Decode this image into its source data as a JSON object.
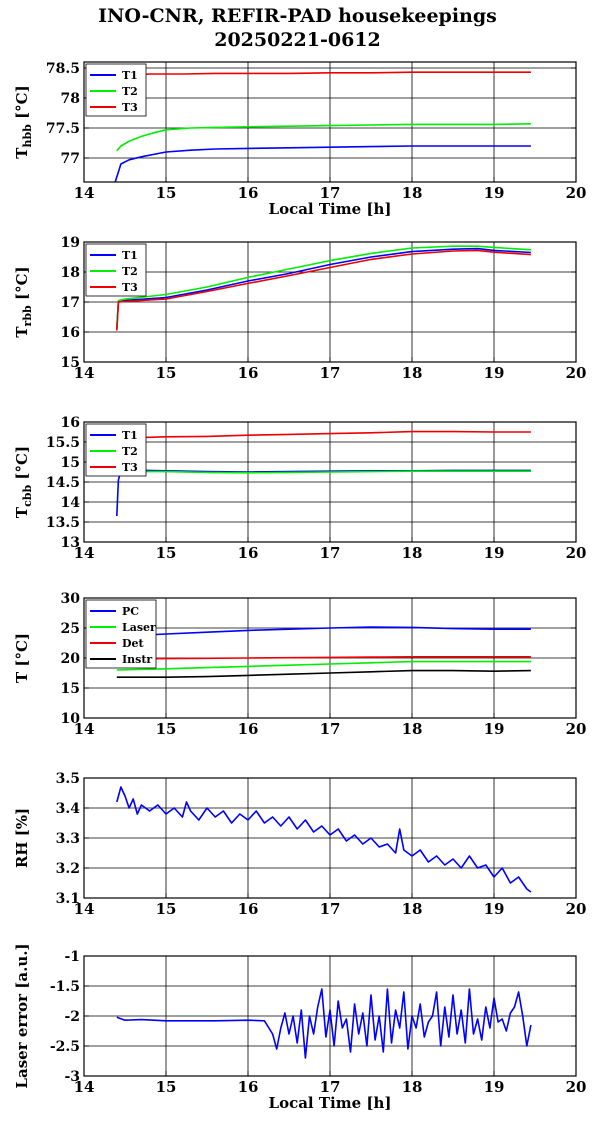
{
  "title_line1": "INO-CNR, REFIR-PAD housekeepings",
  "title_line2": "20250221-0612",
  "colors": {
    "blue": "#0000ff",
    "green": "#00ee00",
    "red": "#ee0000",
    "black": "#000000"
  },
  "chart_data": [
    {
      "type": "line",
      "ylabel_main": "T",
      "ylabel_sub": "hbb",
      "ylabel_unit": " [°C]",
      "xlabel": "Local Time [h]",
      "xlim": [
        14,
        20
      ],
      "ylim": [
        76.6,
        78.6
      ],
      "xticks": [
        14,
        15,
        16,
        17,
        18,
        19,
        20
      ],
      "yticks": [
        77,
        77.5,
        78,
        78.5
      ],
      "ytick_labels": [
        "77",
        "77.5",
        "78",
        "78.5"
      ],
      "grid": true,
      "legend": "top-left",
      "series": [
        {
          "name": "T1",
          "color": "#0000ff",
          "x": [
            14.38,
            14.45,
            14.55,
            14.7,
            14.85,
            15.0,
            15.3,
            15.6,
            16.0,
            16.5,
            17.0,
            17.5,
            18.0,
            18.5,
            19.0,
            19.45
          ],
          "y": [
            76.6,
            76.9,
            76.97,
            77.02,
            77.06,
            77.1,
            77.13,
            77.15,
            77.16,
            77.17,
            77.18,
            77.19,
            77.2,
            77.2,
            77.2,
            77.2
          ]
        },
        {
          "name": "T2",
          "color": "#00ee00",
          "x": [
            14.4,
            14.45,
            14.55,
            14.7,
            14.85,
            15.0,
            15.3,
            15.6,
            16.0,
            16.5,
            17.0,
            17.5,
            18.0,
            18.5,
            19.0,
            19.45
          ],
          "y": [
            77.12,
            77.2,
            77.28,
            77.36,
            77.42,
            77.47,
            77.5,
            77.51,
            77.52,
            77.53,
            77.54,
            77.55,
            77.56,
            77.56,
            77.56,
            77.57
          ]
        },
        {
          "name": "T3",
          "color": "#ee0000",
          "x": [
            14.45,
            14.55,
            14.8,
            15.2,
            15.6,
            16.0,
            16.5,
            17.0,
            17.5,
            18.0,
            18.5,
            19.0,
            19.45
          ],
          "y": [
            78.3,
            78.37,
            78.4,
            78.4,
            78.41,
            78.41,
            78.41,
            78.42,
            78.42,
            78.43,
            78.43,
            78.43,
            78.43
          ]
        }
      ]
    },
    {
      "type": "line",
      "ylabel_main": "T",
      "ylabel_sub": "rbb",
      "ylabel_unit": " [°C]",
      "xlim": [
        14,
        20
      ],
      "ylim": [
        15,
        19
      ],
      "xticks": [
        14,
        15,
        16,
        17,
        18,
        19,
        20
      ],
      "yticks": [
        15,
        16,
        17,
        18,
        19
      ],
      "ytick_labels": [
        "15",
        "16",
        "17",
        "18",
        "19"
      ],
      "grid": true,
      "legend": "top-left",
      "series": [
        {
          "name": "T1",
          "color": "#0000ff",
          "x": [
            14.4,
            14.42,
            14.5,
            15.0,
            15.5,
            16.0,
            16.5,
            17.0,
            17.5,
            18.0,
            18.5,
            18.8,
            19.0,
            19.45
          ],
          "y": [
            16.1,
            17.0,
            17.05,
            17.15,
            17.4,
            17.7,
            17.95,
            18.25,
            18.5,
            18.68,
            18.76,
            18.78,
            18.72,
            18.65
          ]
        },
        {
          "name": "T2",
          "color": "#00ee00",
          "x": [
            14.4,
            14.42,
            14.5,
            15.0,
            15.5,
            16.0,
            16.5,
            17.0,
            17.5,
            18.0,
            18.5,
            18.8,
            19.0,
            19.45
          ],
          "y": [
            16.15,
            17.05,
            17.1,
            17.25,
            17.5,
            17.82,
            18.1,
            18.38,
            18.62,
            18.8,
            18.86,
            18.86,
            18.82,
            18.74
          ]
        },
        {
          "name": "T3",
          "color": "#ee0000",
          "x": [
            14.4,
            14.42,
            14.5,
            15.0,
            15.5,
            16.0,
            16.5,
            17.0,
            17.5,
            18.0,
            18.5,
            18.8,
            19.0,
            19.45
          ],
          "y": [
            16.05,
            17.0,
            17.02,
            17.1,
            17.35,
            17.62,
            17.88,
            18.15,
            18.42,
            18.6,
            18.7,
            18.72,
            18.66,
            18.58
          ]
        }
      ]
    },
    {
      "type": "line",
      "ylabel_main": "T",
      "ylabel_sub": "cbb",
      "ylabel_unit": " [°C]",
      "xlim": [
        14,
        20
      ],
      "ylim": [
        13,
        16
      ],
      "xticks": [
        14,
        15,
        16,
        17,
        18,
        19,
        20
      ],
      "yticks": [
        13,
        13.5,
        14,
        14.5,
        15,
        15.5,
        16
      ],
      "ytick_labels": [
        "13",
        "13.5",
        "14",
        "14.5",
        "15",
        "15.5",
        "16"
      ],
      "grid": true,
      "legend": "top-left",
      "series": [
        {
          "name": "T1",
          "color": "#0000ff",
          "x": [
            14.4,
            14.42,
            14.45,
            14.5,
            15.0,
            15.5,
            16.0,
            16.5,
            17.0,
            17.5,
            18.0,
            18.5,
            19.0,
            19.45
          ],
          "y": [
            13.65,
            14.55,
            14.78,
            14.8,
            14.78,
            14.76,
            14.75,
            14.76,
            14.77,
            14.78,
            14.78,
            14.79,
            14.79,
            14.79
          ]
        },
        {
          "name": "T2",
          "color": "#00ee00",
          "x": [
            14.45,
            14.5,
            15.0,
            15.5,
            16.0,
            16.5,
            17.0,
            17.5,
            18.0,
            18.5,
            19.0,
            19.45
          ],
          "y": [
            14.75,
            14.76,
            14.76,
            14.74,
            14.73,
            14.74,
            14.75,
            14.76,
            14.77,
            14.77,
            14.77,
            14.77
          ]
        },
        {
          "name": "T3",
          "color": "#ee0000",
          "x": [
            14.45,
            14.5,
            15.0,
            15.5,
            16.0,
            16.5,
            17.0,
            17.5,
            18.0,
            18.5,
            19.0,
            19.45
          ],
          "y": [
            15.6,
            15.6,
            15.63,
            15.64,
            15.67,
            15.69,
            15.71,
            15.73,
            15.76,
            15.76,
            15.75,
            15.75
          ]
        }
      ]
    },
    {
      "type": "line",
      "ylabel_main": "T [°C]",
      "xlim": [
        14,
        20
      ],
      "ylim": [
        10,
        30
      ],
      "xticks": [
        14,
        15,
        16,
        17,
        18,
        19,
        20
      ],
      "yticks": [
        10,
        15,
        20,
        25,
        30
      ],
      "ytick_labels": [
        "10",
        "15",
        "20",
        "25",
        "30"
      ],
      "grid": true,
      "legend": "top-left",
      "series": [
        {
          "name": "PC",
          "color": "#0000ff",
          "x": [
            14.4,
            15.0,
            15.5,
            16.0,
            16.5,
            17.0,
            17.5,
            18.0,
            18.5,
            19.0,
            19.45
          ],
          "y": [
            23.6,
            24.0,
            24.3,
            24.6,
            24.8,
            25.0,
            25.15,
            25.1,
            24.9,
            24.8,
            24.8
          ]
        },
        {
          "name": "Laser",
          "color": "#00ee00",
          "x": [
            14.4,
            15.0,
            15.5,
            16.0,
            16.5,
            17.0,
            17.5,
            18.0,
            18.5,
            19.0,
            19.45
          ],
          "y": [
            18.0,
            18.2,
            18.4,
            18.6,
            18.8,
            19.0,
            19.2,
            19.4,
            19.4,
            19.4,
            19.4
          ]
        },
        {
          "name": "Det",
          "color": "#ee0000",
          "x": [
            14.4,
            15.0,
            15.5,
            16.0,
            16.5,
            17.0,
            17.5,
            18.0,
            18.5,
            19.0,
            19.45
          ],
          "y": [
            19.8,
            19.9,
            19.95,
            20.0,
            20.05,
            20.1,
            20.15,
            20.2,
            20.2,
            20.2,
            20.2
          ]
        },
        {
          "name": "Instr",
          "color": "#000000",
          "x": [
            14.4,
            15.0,
            15.5,
            16.0,
            16.5,
            17.0,
            17.5,
            18.0,
            18.5,
            19.0,
            19.45
          ],
          "y": [
            16.8,
            16.8,
            16.9,
            17.1,
            17.3,
            17.5,
            17.7,
            17.9,
            17.9,
            17.8,
            17.9
          ]
        }
      ]
    },
    {
      "type": "line",
      "ylabel_main": "RH [%]",
      "xlim": [
        14,
        20
      ],
      "ylim": [
        3.1,
        3.5
      ],
      "xticks": [
        14,
        15,
        16,
        17,
        18,
        19,
        20
      ],
      "yticks": [
        3.1,
        3.2,
        3.3,
        3.4,
        3.5
      ],
      "ytick_labels": [
        "3.1",
        "3.2",
        "3.3",
        "3.4",
        "3.5"
      ],
      "grid": true,
      "legend": "none",
      "series": [
        {
          "color": "#0000ff",
          "x": [
            14.4,
            14.45,
            14.5,
            14.55,
            14.6,
            14.65,
            14.7,
            14.8,
            14.9,
            15.0,
            15.1,
            15.2,
            15.25,
            15.3,
            15.4,
            15.5,
            15.6,
            15.7,
            15.8,
            15.9,
            16.0,
            16.1,
            16.2,
            16.3,
            16.4,
            16.5,
            16.6,
            16.7,
            16.8,
            16.9,
            17.0,
            17.1,
            17.2,
            17.3,
            17.4,
            17.5,
            17.6,
            17.7,
            17.8,
            17.85,
            17.9,
            18.0,
            18.1,
            18.2,
            18.3,
            18.4,
            18.5,
            18.6,
            18.7,
            18.8,
            18.9,
            19.0,
            19.1,
            19.2,
            19.3,
            19.4,
            19.45
          ],
          "y": [
            3.42,
            3.47,
            3.44,
            3.4,
            3.43,
            3.38,
            3.41,
            3.39,
            3.41,
            3.38,
            3.4,
            3.37,
            3.42,
            3.39,
            3.36,
            3.4,
            3.37,
            3.39,
            3.35,
            3.38,
            3.36,
            3.39,
            3.35,
            3.37,
            3.34,
            3.37,
            3.33,
            3.36,
            3.32,
            3.34,
            3.31,
            3.33,
            3.29,
            3.31,
            3.28,
            3.3,
            3.27,
            3.28,
            3.25,
            3.33,
            3.26,
            3.24,
            3.26,
            3.22,
            3.24,
            3.21,
            3.23,
            3.2,
            3.24,
            3.2,
            3.21,
            3.17,
            3.2,
            3.15,
            3.17,
            3.13,
            3.12
          ]
        }
      ]
    },
    {
      "type": "line",
      "ylabel_main": "Laser error [a.u.]",
      "xlabel": "Local Time [h]",
      "xlim": [
        14,
        20
      ],
      "ylim": [
        -3,
        -1
      ],
      "xticks": [
        14,
        15,
        16,
        17,
        18,
        19,
        20
      ],
      "yticks": [
        -3,
        -2.5,
        -2,
        -1.5,
        -1
      ],
      "ytick_labels": [
        "-3",
        "-2.5",
        "-2",
        "-1.5",
        "-1"
      ],
      "grid": true,
      "legend": "none",
      "series": [
        {
          "color": "#0000ff",
          "x": [
            14.4,
            14.5,
            14.7,
            15.0,
            15.3,
            15.6,
            16.0,
            16.2,
            16.3,
            16.35,
            16.4,
            16.45,
            16.5,
            16.55,
            16.6,
            16.65,
            16.7,
            16.75,
            16.8,
            16.85,
            16.9,
            16.95,
            17.0,
            17.05,
            17.1,
            17.15,
            17.2,
            17.25,
            17.3,
            17.35,
            17.4,
            17.45,
            17.5,
            17.55,
            17.6,
            17.65,
            17.7,
            17.75,
            17.8,
            17.85,
            17.9,
            17.95,
            18.0,
            18.05,
            18.1,
            18.15,
            18.2,
            18.25,
            18.3,
            18.35,
            18.4,
            18.45,
            18.5,
            18.55,
            18.6,
            18.65,
            18.7,
            18.75,
            18.8,
            18.85,
            18.9,
            18.95,
            19.0,
            19.05,
            19.1,
            19.15,
            19.2,
            19.25,
            19.3,
            19.35,
            19.4,
            19.45
          ],
          "y": [
            -2.02,
            -2.07,
            -2.06,
            -2.08,
            -2.08,
            -2.08,
            -2.07,
            -2.08,
            -2.3,
            -2.55,
            -2.2,
            -1.95,
            -2.3,
            -2.0,
            -2.45,
            -1.9,
            -2.7,
            -2.0,
            -2.3,
            -1.85,
            -1.55,
            -2.35,
            -1.9,
            -2.5,
            -1.75,
            -2.2,
            -2.05,
            -2.6,
            -1.8,
            -2.3,
            -1.95,
            -2.5,
            -1.65,
            -2.4,
            -2.0,
            -2.6,
            -1.55,
            -2.45,
            -1.9,
            -2.2,
            -1.6,
            -2.55,
            -2.0,
            -2.2,
            -1.8,
            -2.35,
            -2.1,
            -2.0,
            -1.6,
            -2.5,
            -1.85,
            -2.35,
            -1.65,
            -2.3,
            -1.9,
            -2.45,
            -1.55,
            -2.3,
            -2.05,
            -2.4,
            -1.85,
            -2.2,
            -1.7,
            -2.1,
            -2.05,
            -2.25,
            -1.95,
            -1.85,
            -1.6,
            -2.0,
            -2.5,
            -2.15
          ]
        }
      ]
    }
  ]
}
